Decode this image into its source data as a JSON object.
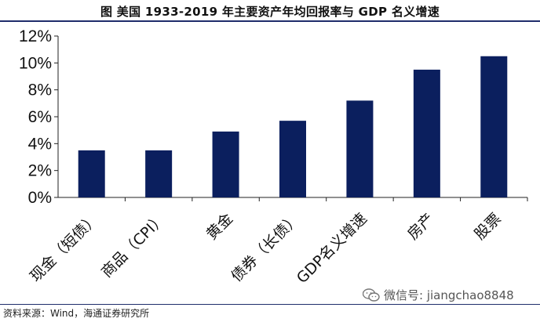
{
  "title": "图  美国 1933-2019 年主要资产年均回报率与 GDP 名义增速",
  "source": "资料来源：Wind，海通证券研究所",
  "watermark": "微信号: jiangchao8848",
  "colors": {
    "bar": "#0b1f5e",
    "axis": "#222222",
    "rule": "#1f2d6b"
  },
  "chart_data": {
    "type": "bar",
    "categories": [
      "现金（短债）",
      "商品（CPI）",
      "黄金",
      "债券（长债）",
      "GDP名义增速",
      "房产",
      "股票"
    ],
    "values": [
      3.5,
      3.5,
      4.9,
      5.7,
      7.2,
      9.5,
      10.5
    ],
    "ylim": [
      0,
      12
    ],
    "yticks": [
      "0%",
      "2%",
      "4%",
      "6%",
      "8%",
      "10%",
      "12%"
    ],
    "grid": false,
    "legend": "none"
  }
}
